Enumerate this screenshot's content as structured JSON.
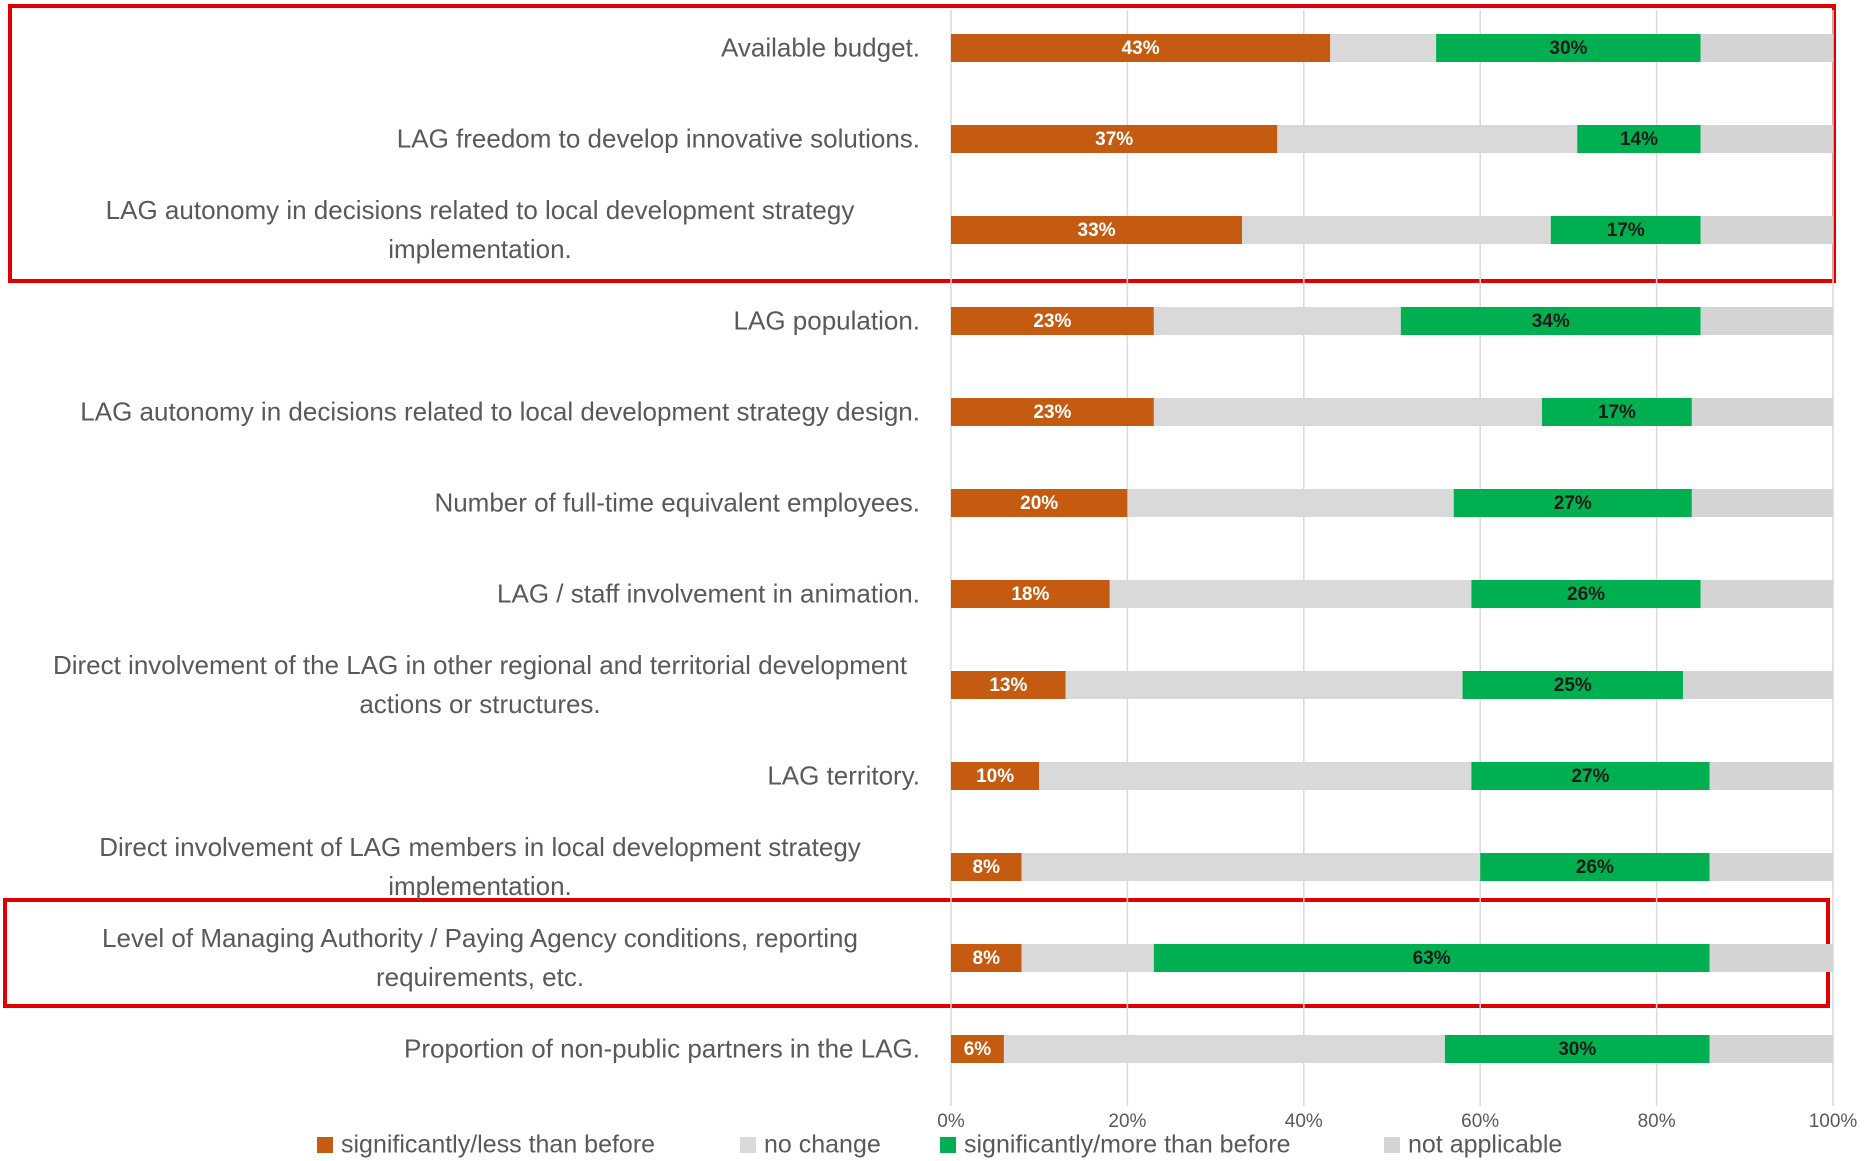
{
  "chart_data": {
    "type": "stacked_barh",
    "categories": [
      "Available budget.",
      "LAG freedom to develop innovative solutions.",
      "LAG autonomy in decisions related to local development strategy implementation.",
      "LAG population.",
      "LAG autonomy in decisions related to local development strategy design.",
      "Number of full-time equivalent employees.",
      "LAG / staff involvement in animation.",
      "Direct involvement of the LAG in other regional and territorial development actions or structures.",
      "LAG territory.",
      "Direct involvement of LAG members in local development strategy implementation.",
      "Level of Managing Authority / Paying Agency conditions, reporting requirements, etc.",
      "Proportion of non-public partners in the LAG."
    ],
    "series": [
      {
        "name": "significantly/less than before",
        "color": "#c55a11",
        "label_color": "#ffffff",
        "values": [
          43,
          37,
          33,
          23,
          23,
          20,
          18,
          13,
          10,
          8,
          8,
          6
        ],
        "value_labels": [
          "43%",
          "37%",
          "33%",
          "23%",
          "23%",
          "20%",
          "18%",
          "13%",
          "10%",
          "8%",
          "8%",
          "6%"
        ]
      },
      {
        "name": "no change",
        "color": "#d9d9d9",
        "values": [
          12,
          34,
          35,
          28,
          44,
          37,
          41,
          45,
          49,
          52,
          15,
          50
        ]
      },
      {
        "name": "significantly/more than before",
        "color": "#00b050",
        "label_color": "#1a1a1a",
        "values": [
          30,
          14,
          17,
          34,
          17,
          27,
          26,
          25,
          27,
          26,
          63,
          30
        ],
        "value_labels": [
          "30%",
          "14%",
          "17%",
          "34%",
          "17%",
          "27%",
          "26%",
          "25%",
          "27%",
          "26%",
          "63%",
          "30%"
        ]
      },
      {
        "name": "not applicable",
        "color": "#d4d4d4",
        "values": [
          15,
          15,
          15,
          15,
          16,
          16,
          15,
          17,
          14,
          14,
          14,
          14
        ]
      }
    ],
    "xlim": [
      0,
      100
    ],
    "xticks": [
      {
        "value": 0,
        "label": "0%"
      },
      {
        "value": 20,
        "label": "20%"
      },
      {
        "value": 40,
        "label": "40%"
      },
      {
        "value": 60,
        "label": "60%"
      },
      {
        "value": 80,
        "label": "80%"
      },
      {
        "value": 100,
        "label": "100%"
      }
    ],
    "grid": true
  }
}
